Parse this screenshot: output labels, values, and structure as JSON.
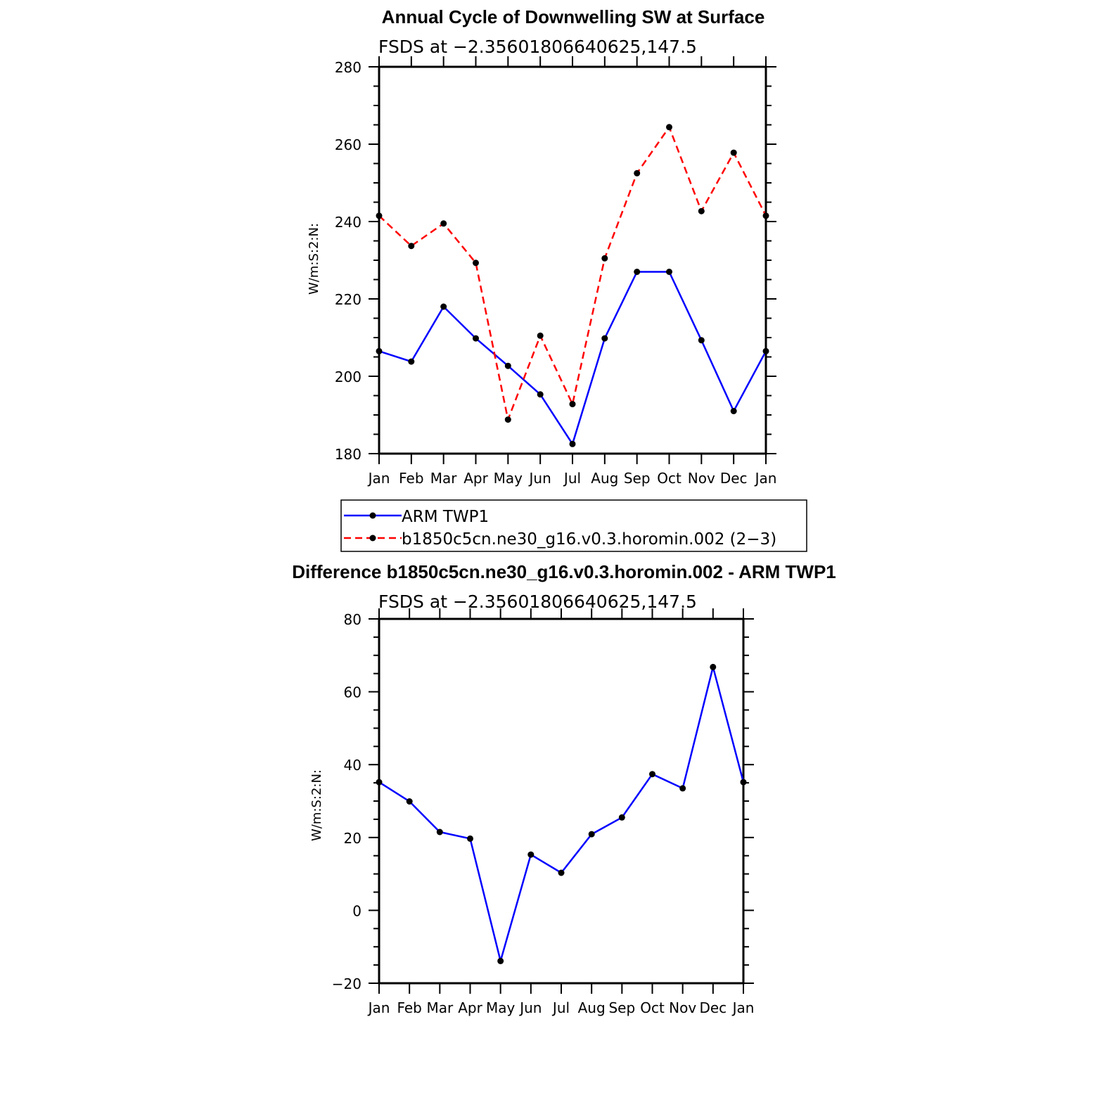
{
  "chart_data": [
    {
      "type": "line",
      "title": "Annual Cycle of Downwelling SW at Surface",
      "subtitle": "FSDS at −2.35601806640625,147.5",
      "ylabel": "W/m:S:2:N:",
      "categories": [
        "Jan",
        "Feb",
        "Mar",
        "Apr",
        "May",
        "Jun",
        "Jul",
        "Aug",
        "Sep",
        "Oct",
        "Nov",
        "Dec",
        "Jan"
      ],
      "ylim": [
        180,
        280
      ],
      "yticks": [
        "180",
        "200",
        "220",
        "240",
        "260",
        "280"
      ],
      "series": [
        {
          "name": "ARM TWP1",
          "color": "#0000ff",
          "dash": "solid",
          "values": [
            206.5,
            203.8,
            218.0,
            209.8,
            202.7,
            195.3,
            182.5,
            209.8,
            227.0,
            227.0,
            209.3,
            191.0,
            206.5
          ]
        },
        {
          "name": "b1850c5cn.ne30_g16.v0.3.horomin.002 (2−3)",
          "color": "#ff0000",
          "dash": "dashed",
          "values": [
            241.5,
            233.7,
            239.5,
            229.3,
            188.8,
            210.5,
            192.8,
            230.5,
            252.5,
            264.4,
            242.7,
            257.8,
            241.5
          ]
        }
      ]
    },
    {
      "type": "line",
      "title": "Difference b1850c5cn.ne30_g16.v0.3.horomin.002 - ARM TWP1",
      "subtitle": "FSDS at −2.35601806640625,147.5",
      "ylabel": "W/m:S:2:N:",
      "categories": [
        "Jan",
        "Feb",
        "Mar",
        "Apr",
        "May",
        "Jun",
        "Jul",
        "Aug",
        "Sep",
        "Oct",
        "Nov",
        "Dec",
        "Jan"
      ],
      "ylim": [
        -20,
        80
      ],
      "yticks": [
        "−20",
        "0",
        "20",
        "40",
        "60",
        "80"
      ],
      "series": [
        {
          "name": "Difference",
          "color": "#0000ff",
          "dash": "solid",
          "values": [
            35.2,
            29.9,
            21.5,
            19.7,
            -13.9,
            15.3,
            10.3,
            20.9,
            25.5,
            37.4,
            33.5,
            66.8,
            35.2
          ]
        }
      ]
    }
  ]
}
